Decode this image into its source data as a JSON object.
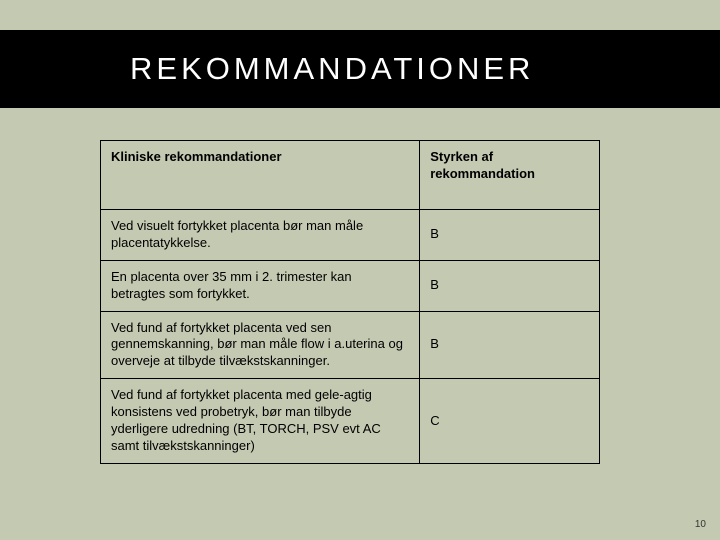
{
  "title": "REKOMMANDATIONER",
  "page_number": "10",
  "table": {
    "headers": {
      "col1": "Kliniske rekommandationer",
      "col2": "Styrken af rekommandation"
    },
    "rows": [
      {
        "text": "Ved visuelt fortykket placenta bør man måle placentatykkelse.",
        "strength": "B"
      },
      {
        "text": "En placenta over 35 mm i 2. trimester kan betragtes som fortykket.",
        "strength": "B"
      },
      {
        "text": "Ved fund af fortykket placenta ved sen gennemskanning, bør man måle flow i a.uterina og overveje at tilbyde tilvækstskanninger.",
        "strength": "B"
      },
      {
        "text": "Ved fund af fortykket placenta med gele-agtig konsistens ved probetryk, bør man tilbyde yderligere udredning (BT, TORCH, PSV evt AC samt tilvækstskanninger)",
        "strength": "C"
      }
    ]
  },
  "colors": {
    "background": "#c4c9b2",
    "title_bar": "#000000",
    "title_text": "#ffffff",
    "border": "#000000"
  },
  "typography": {
    "title_fontsize": 31,
    "title_letterspacing": 4,
    "cell_fontsize": 13
  }
}
